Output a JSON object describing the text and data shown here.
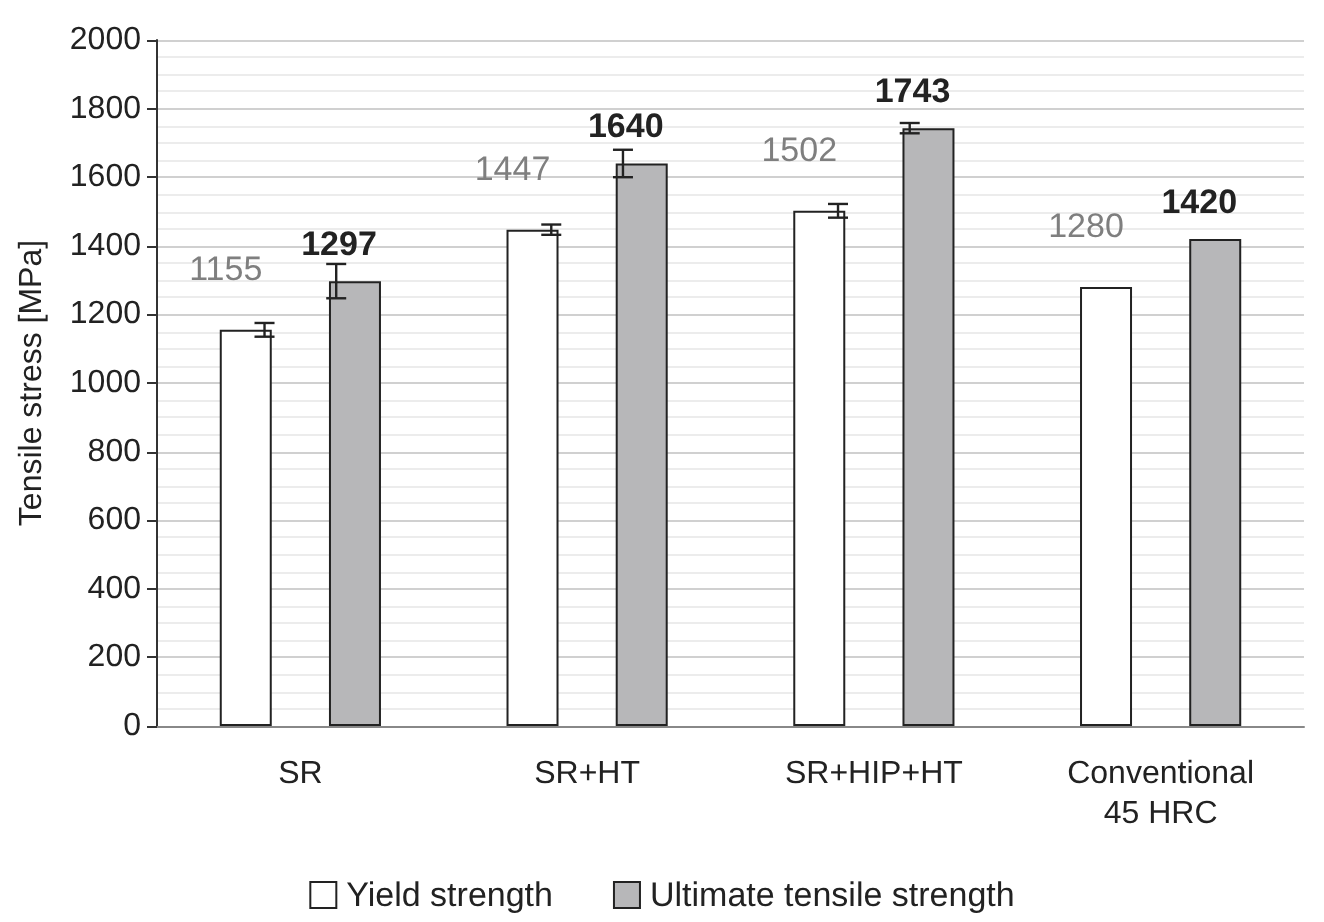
{
  "chart_data": {
    "type": "bar",
    "ylabel": "Tensile stress [MPa]",
    "categories": [
      "SR",
      "SR+HT",
      "SR+HIP+HT",
      "Conventional\n45 HRC"
    ],
    "series": [
      {
        "name": "Yield strength",
        "color": "#ffffff",
        "values": [
          1155,
          1447,
          1502,
          1280
        ],
        "errors": [
          20,
          15,
          20,
          null
        ]
      },
      {
        "name": "Ultimate tensile strength",
        "color": "#b7b7b9",
        "values": [
          1297,
          1640,
          1743,
          1420
        ],
        "errors": [
          50,
          40,
          15,
          null
        ]
      }
    ],
    "data_labels": true,
    "ylim": [
      0,
      2000
    ],
    "yticks": [
      0,
      200,
      400,
      600,
      800,
      1000,
      1200,
      1400,
      1600,
      1800,
      2000
    ],
    "grid": "y",
    "legend": "bottom"
  }
}
